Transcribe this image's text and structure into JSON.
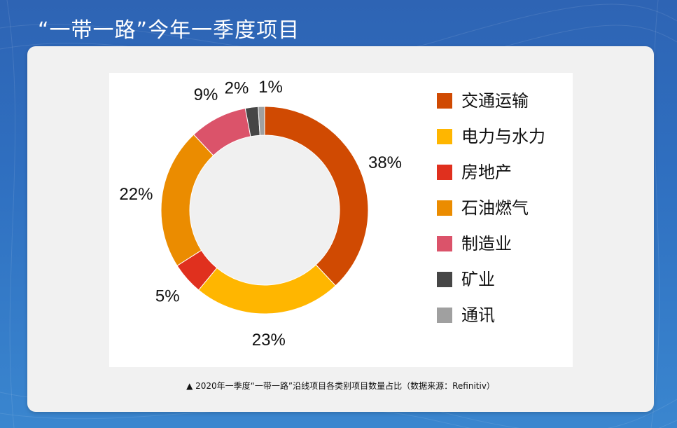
{
  "slide": {
    "title": "“一带一路”今年一季度项目",
    "caption": "▲ 2020年一季度“一带一路”沿线项目各类别项目数量占比（数据来源：Refinitiv）"
  },
  "colors": {
    "background": "#2f6fc0",
    "card": "#f1f1f1",
    "donut_hole": "#f0f0f0"
  },
  "chart_data": {
    "type": "pie",
    "donut": true,
    "start_angle_deg": 0,
    "direction": "clockwise",
    "legend_position": "right",
    "series": [
      {
        "name": "交通运输",
        "value": 38,
        "label": "38%",
        "color": "#d04a02"
      },
      {
        "name": "电力与水力",
        "value": 23,
        "label": "23%",
        "color": "#ffb600"
      },
      {
        "name": "房地产",
        "value": 5,
        "label": "5%",
        "color": "#e0301e"
      },
      {
        "name": "石油燃气",
        "value": 22,
        "label": "22%",
        "color": "#eb8c00"
      },
      {
        "name": "制造业",
        "value": 9,
        "label": "9%",
        "color": "#db536a"
      },
      {
        "name": "矿业",
        "value": 2,
        "label": "2%",
        "color": "#464646"
      },
      {
        "name": "通讯",
        "value": 1,
        "label": "1%",
        "color": "#a0a0a0"
      }
    ]
  }
}
